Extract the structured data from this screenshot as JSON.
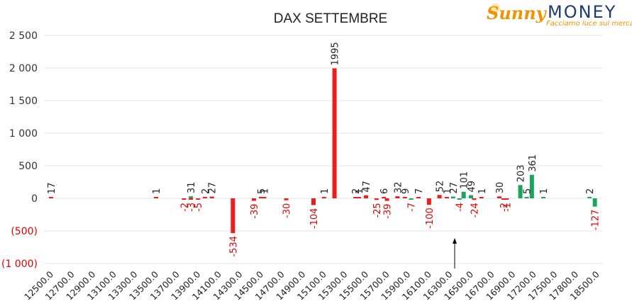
{
  "logo": {
    "brand_part1": "Sunny",
    "brand_part2": "MONEY",
    "tagline": "Facciamo luce sui mercati"
  },
  "chart_data": {
    "type": "bar",
    "title": "DAX SETTEMBRE",
    "xlabel": "",
    "ylabel": "",
    "ylim": [
      -1000,
      2500
    ],
    "grid": true,
    "legend": "none",
    "yticks": [
      {
        "value": 2500,
        "label": "2 500"
      },
      {
        "value": 2000,
        "label": "2 000"
      },
      {
        "value": 1500,
        "label": "1 500"
      },
      {
        "value": 1000,
        "label": "1 000"
      },
      {
        "value": 500,
        "label": "500"
      },
      {
        "value": 0,
        "label": "0"
      },
      {
        "value": -500,
        "label": "(500)"
      },
      {
        "value": -1000,
        "label": "(1 000)"
      }
    ],
    "colors": {
      "positive_series": "#1aa55a",
      "negative_series": "#ee1c1c",
      "positive_label": "#222222",
      "negative_label": "#e00000"
    },
    "tick_labels": [
      "12500.0",
      "12700.0",
      "12900.0",
      "13100.0",
      "13300.0",
      "13500.0",
      "13700.0",
      "13900.0",
      "14100.0",
      "14300.0",
      "14500.0",
      "14700.0",
      "14900.0",
      "15100.0",
      "15300.0",
      "15500.0",
      "15700.0",
      "15900.0",
      "16100.0",
      "16300.0",
      "16500.0",
      "16700.0",
      "16900.0",
      "17200.0",
      "17500.0",
      "17800.0",
      "18500.0"
    ],
    "series": [
      {
        "color": "#ee1c1c",
        "points": [
          {
            "tick": 0,
            "value": 17
          },
          {
            "tick": 5,
            "value": 1
          },
          {
            "tick": 6.33,
            "value": -2
          },
          {
            "tick": 6.66,
            "value": -3
          },
          {
            "tick": 7.0,
            "value": -5
          },
          {
            "tick": 7.33,
            "value": 2
          },
          {
            "tick": 7.66,
            "value": 27
          },
          {
            "tick": 8.66,
            "value": -534
          },
          {
            "tick": 9.66,
            "value": -39
          },
          {
            "tick": 10.0,
            "value": 5
          },
          {
            "tick": 10.15,
            "value": 1
          },
          {
            "tick": 11.2,
            "value": -30
          },
          {
            "tick": 12.5,
            "value": -104
          },
          {
            "tick": 13.0,
            "value": 1
          },
          {
            "tick": 13.5,
            "value": 1995
          },
          {
            "tick": 14.5,
            "value": 2
          },
          {
            "tick": 14.66,
            "value": 1
          },
          {
            "tick": 15.0,
            "value": 47
          },
          {
            "tick": 15.5,
            "value": -25
          },
          {
            "tick": 15.85,
            "value": 6
          },
          {
            "tick": 16.0,
            "value": -39
          },
          {
            "tick": 16.5,
            "value": 32
          },
          {
            "tick": 16.85,
            "value": 9
          },
          {
            "tick": 17.5,
            "value": 7
          },
          {
            "tick": 18.0,
            "value": -100
          },
          {
            "tick": 18.5,
            "value": 52
          },
          {
            "tick": 18.85,
            "value": 1
          },
          {
            "tick": 20.15,
            "value": -24
          },
          {
            "tick": 20.5,
            "value": 1
          },
          {
            "tick": 21.35,
            "value": 30
          },
          {
            "tick": 21.55,
            "value": -2
          },
          {
            "tick": 21.7,
            "value": -1
          }
        ]
      },
      {
        "color": "#1aa55a",
        "points": [
          {
            "tick": 6.66,
            "value": 31
          },
          {
            "tick": 17.15,
            "value": -7
          },
          {
            "tick": 19.15,
            "value": 27
          },
          {
            "tick": 19.45,
            "value": -4
          },
          {
            "tick": 19.65,
            "value": 101
          },
          {
            "tick": 20.0,
            "value": 49
          },
          {
            "tick": 22.35,
            "value": 203
          },
          {
            "tick": 22.65,
            "value": 5
          },
          {
            "tick": 22.9,
            "value": 361
          },
          {
            "tick": 23.45,
            "value": 1
          },
          {
            "tick": 25.65,
            "value": 2
          },
          {
            "tick": 25.9,
            "value": -127
          }
        ]
      }
    ]
  }
}
